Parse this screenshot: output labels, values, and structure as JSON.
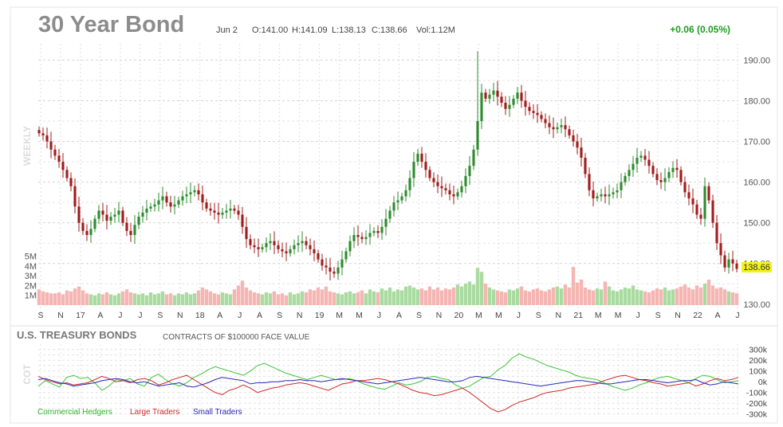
{
  "header": {
    "title": "30 Year Bond",
    "date": "Jun 2",
    "open": "O:141.00",
    "high": "H:141.09",
    "low": "L:138.13",
    "close": "C:138.66",
    "volume": "Vol:1.12M",
    "change": "+0.06 (0.05%)"
  },
  "period_label": "WEEKLY",
  "cot_label": "COT",
  "colors": {
    "up": "#2e8b2e",
    "down": "#a01c1c",
    "vol_up": "#a9dba0",
    "vol_down": "#f5b5b2",
    "change_positive": "#1e9b1e",
    "price_tag_bg": "#f3f316",
    "commercial": "#3cc33c",
    "large": "#cc2a2a",
    "small": "#2a2ab4",
    "title": "#8c8c8c"
  },
  "price_tag": "138.66",
  "chart_data": [
    {
      "type": "candlestick",
      "y_range": [
        128,
        194
      ],
      "y_ticks": [
        "190.00",
        "180.00",
        "170.00",
        "160.00",
        "150.00",
        "140.00",
        "130.00"
      ],
      "volume_ticks": [
        "5M",
        "4M",
        "3M",
        "2M",
        "1M"
      ],
      "x_tick_labels": [
        "S",
        "N",
        "17",
        "A",
        "J",
        "J",
        "S",
        "N",
        "18",
        "A",
        "J",
        "A",
        "S",
        "N",
        "19",
        "M",
        "M",
        "J",
        "A",
        "S",
        "N",
        "20",
        "M",
        "M",
        "J",
        "S",
        "N",
        "21",
        "M",
        "M",
        "J",
        "S",
        "N",
        "22",
        "A",
        "J"
      ],
      "weekly_close": [
        172.0,
        171.5,
        170.0,
        168.0,
        166.5,
        165.0,
        163.0,
        161.0,
        159.0,
        154.0,
        150.0,
        148.0,
        147.0,
        148.5,
        151.0,
        153.0,
        152.0,
        150.5,
        151.5,
        152.0,
        153.0,
        150.0,
        148.0,
        147.0,
        149.5,
        151.5,
        152.5,
        153.5,
        154.0,
        154.5,
        155.5,
        156.5,
        155.0,
        154.0,
        154.5,
        155.5,
        156.5,
        157.0,
        157.5,
        158.0,
        157.0,
        155.0,
        153.5,
        153.0,
        152.5,
        152.0,
        152.5,
        153.0,
        153.5,
        153.0,
        152.0,
        149.0,
        146.0,
        144.5,
        144.0,
        143.5,
        144.0,
        145.0,
        145.5,
        144.5,
        143.5,
        143.0,
        142.5,
        143.5,
        144.5,
        145.0,
        145.5,
        144.5,
        143.5,
        142.5,
        141.0,
        139.5,
        139.0,
        138.0,
        137.5,
        139.0,
        141.0,
        143.0,
        145.5,
        147.0,
        146.5,
        146.0,
        146.5,
        147.5,
        148.0,
        147.5,
        149.0,
        151.0,
        153.0,
        155.0,
        155.5,
        156.5,
        158.0,
        161.0,
        165.0,
        167.0,
        165.0,
        163.0,
        161.0,
        160.0,
        159.0,
        158.5,
        158.0,
        157.0,
        156.5,
        157.5,
        159.0,
        161.5,
        164.0,
        168.0,
        175.0,
        182.0,
        180.5,
        181.5,
        182.5,
        181.0,
        179.5,
        178.0,
        179.0,
        180.5,
        182.0,
        180.0,
        178.5,
        177.5,
        177.0,
        176.5,
        175.5,
        174.5,
        173.5,
        173.0,
        173.5,
        174.0,
        173.0,
        171.5,
        170.0,
        168.5,
        166.0,
        162.0,
        158.0,
        156.0,
        156.5,
        157.0,
        156.5,
        157.0,
        157.5,
        158.0,
        160.0,
        161.5,
        163.0,
        164.5,
        166.0,
        166.5,
        165.5,
        164.0,
        162.0,
        160.5,
        160.0,
        161.0,
        162.5,
        163.5,
        163.0,
        160.0,
        157.5,
        156.0,
        154.5,
        152.0,
        151.0,
        159.0,
        155.5,
        150.0,
        145.0,
        142.0,
        139.0,
        141.0,
        140.0,
        138.66
      ],
      "volume_millions": [
        1.6,
        1.4,
        1.3,
        1.2,
        1.2,
        1.3,
        1.1,
        1.5,
        1.4,
        1.7,
        1.9,
        1.5,
        1.2,
        1.1,
        1.0,
        1.2,
        1.1,
        1.3,
        1.1,
        1.0,
        1.2,
        1.4,
        1.6,
        1.3,
        1.2,
        1.1,
        1.2,
        1.0,
        1.3,
        1.1,
        1.2,
        1.4,
        1.1,
        1.2,
        1.0,
        1.2,
        1.1,
        1.3,
        1.1,
        1.2,
        1.5,
        1.8,
        1.6,
        1.4,
        1.2,
        1.1,
        1.3,
        1.2,
        1.1,
        1.6,
        2.0,
        2.5,
        1.8,
        1.5,
        1.3,
        1.2,
        1.1,
        1.3,
        1.2,
        1.4,
        1.1,
        1.2,
        1.0,
        1.3,
        1.1,
        1.2,
        1.4,
        1.3,
        1.6,
        1.5,
        1.8,
        1.6,
        1.9,
        1.4,
        1.3,
        1.2,
        1.1,
        1.3,
        1.4,
        1.2,
        1.3,
        1.5,
        1.2,
        1.6,
        1.4,
        1.3,
        1.7,
        1.5,
        1.8,
        1.4,
        1.6,
        1.5,
        1.9,
        2.0,
        1.8,
        1.6,
        1.7,
        1.5,
        1.9,
        1.6,
        1.8,
        1.5,
        1.7,
        1.6,
        1.8,
        2.1,
        1.9,
        2.2,
        2.4,
        2.1,
        3.8,
        3.4,
        2.2,
        1.8,
        1.6,
        1.5,
        1.4,
        1.3,
        1.6,
        1.5,
        1.7,
        1.9,
        1.5,
        1.4,
        1.6,
        1.7,
        1.5,
        1.4,
        1.6,
        1.8,
        1.9,
        1.7,
        2.1,
        1.8,
        3.9,
        2.3,
        2.6,
        1.8,
        1.6,
        1.5,
        1.7,
        1.6,
        2.4,
        1.9,
        1.5,
        1.4,
        1.6,
        1.8,
        1.7,
        2.0,
        1.6,
        1.5,
        1.4,
        1.3,
        1.5,
        1.7,
        1.6,
        1.8,
        1.5,
        1.6,
        1.7,
        1.9,
        2.1,
        1.8,
        1.6,
        2.0,
        1.8,
        2.2,
        2.6,
        2.0,
        1.7,
        1.8
      ]
    },
    {
      "type": "line",
      "title": "U.S. TREASURY BONDS",
      "subtitle": "CONTRACTS OF $100000 FACE VALUE",
      "y_range": [
        -310000,
        320000
      ],
      "y_ticks": [
        "300k",
        "200k",
        "100k",
        "0k",
        "-100k",
        "-200k",
        "-300k"
      ],
      "series": [
        {
          "name": "Commercial Hedgers",
          "values": [
            -40000,
            10000,
            -20000,
            -50000,
            40000,
            60000,
            30000,
            40000,
            -10000,
            -80000,
            -40000,
            20000,
            10000,
            30000,
            -20000,
            -40000,
            40000,
            70000,
            20000,
            -20000,
            -40000,
            -10000,
            40000,
            70000,
            110000,
            140000,
            120000,
            100000,
            80000,
            60000,
            100000,
            150000,
            170000,
            140000,
            110000,
            80000,
            60000,
            40000,
            20000,
            40000,
            60000,
            40000,
            20000,
            20000,
            30000,
            10000,
            -20000,
            -40000,
            -60000,
            -70000,
            -40000,
            -10000,
            -30000,
            -20000,
            0,
            40000,
            50000,
            30000,
            20000,
            -30000,
            -60000,
            -40000,
            0,
            40000,
            50000,
            110000,
            150000,
            220000,
            260000,
            230000,
            210000,
            180000,
            150000,
            130000,
            110000,
            90000,
            60000,
            40000,
            30000,
            20000,
            -10000,
            -40000,
            -60000,
            -80000,
            -60000,
            -30000,
            -10000,
            20000,
            40000,
            50000,
            30000,
            10000,
            -10000,
            30000,
            60000,
            50000,
            20000,
            -10000,
            0,
            10000
          ]
        },
        {
          "name": "Large Traders",
          "values": [
            50000,
            20000,
            0,
            -20000,
            -10000,
            -30000,
            -20000,
            -10000,
            20000,
            50000,
            30000,
            0,
            10000,
            -10000,
            20000,
            30000,
            10000,
            -30000,
            -10000,
            20000,
            40000,
            60000,
            20000,
            -20000,
            -60000,
            -100000,
            -120000,
            -80000,
            -60000,
            -30000,
            -60000,
            -100000,
            -80000,
            -60000,
            -50000,
            -30000,
            -20000,
            -10000,
            -20000,
            -40000,
            -60000,
            -80000,
            -50000,
            -20000,
            -10000,
            10000,
            10000,
            20000,
            30000,
            20000,
            0,
            -20000,
            -50000,
            -80000,
            -100000,
            -110000,
            -130000,
            -120000,
            -100000,
            -80000,
            -60000,
            -100000,
            -150000,
            -200000,
            -250000,
            -280000,
            -260000,
            -220000,
            -190000,
            -170000,
            -150000,
            -120000,
            -100000,
            -90000,
            -80000,
            -60000,
            -50000,
            -40000,
            -30000,
            -20000,
            10000,
            30000,
            50000,
            60000,
            40000,
            20000,
            10000,
            -10000,
            -20000,
            -40000,
            -30000,
            -20000,
            -10000,
            -40000,
            -20000,
            10000,
            30000,
            10000,
            20000,
            40000
          ]
        },
        {
          "name": "Small Traders",
          "values": [
            20000,
            30000,
            10000,
            -10000,
            -20000,
            -40000,
            -30000,
            -20000,
            -10000,
            10000,
            20000,
            30000,
            20000,
            0,
            -10000,
            0,
            -20000,
            -40000,
            -30000,
            -20000,
            -10000,
            -40000,
            -50000,
            -30000,
            -10000,
            20000,
            40000,
            30000,
            20000,
            10000,
            -20000,
            -10000,
            -10000,
            0,
            0,
            10000,
            10000,
            20000,
            10000,
            10000,
            0,
            10000,
            20000,
            30000,
            20000,
            10000,
            0,
            -10000,
            -20000,
            -10000,
            0,
            10000,
            20000,
            30000,
            40000,
            30000,
            20000,
            10000,
            0,
            0,
            10000,
            40000,
            50000,
            40000,
            30000,
            20000,
            10000,
            0,
            -10000,
            -20000,
            -30000,
            -40000,
            -30000,
            -20000,
            -10000,
            0,
            10000,
            10000,
            0,
            -10000,
            -20000,
            -20000,
            -10000,
            0,
            10000,
            20000,
            20000,
            10000,
            0,
            -10000,
            0,
            10000,
            10000,
            20000,
            -10000,
            -30000,
            -20000,
            0,
            -10000,
            -20000
          ]
        }
      ],
      "legend": [
        "Commercial Hedgers",
        "Large Traders",
        "Small Traders"
      ],
      "legend_position": "bottom-left"
    }
  ]
}
